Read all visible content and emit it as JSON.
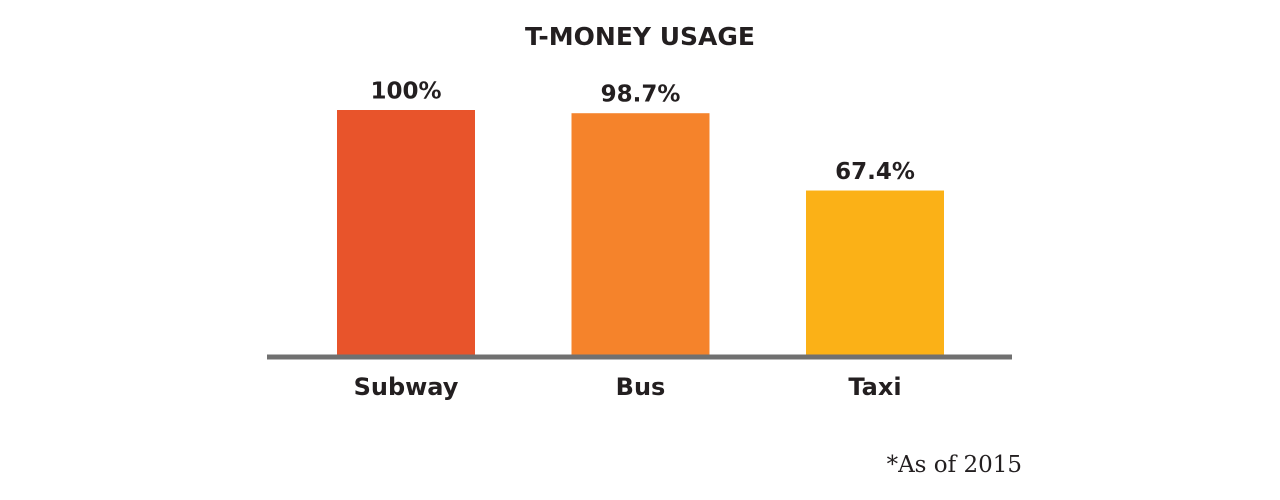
{
  "chart_data": {
    "type": "bar",
    "title": "T-MONEY USAGE",
    "categories": [
      "Subway",
      "Bus",
      "Taxi"
    ],
    "values": [
      100,
      98.7,
      67.4
    ],
    "value_labels": [
      "100%",
      "98.7%",
      "67.4%"
    ],
    "colors": [
      "#e8542b",
      "#f5832b",
      "#fbb117"
    ],
    "ylim": [
      0,
      100
    ],
    "annotation": "*As of 2015"
  }
}
